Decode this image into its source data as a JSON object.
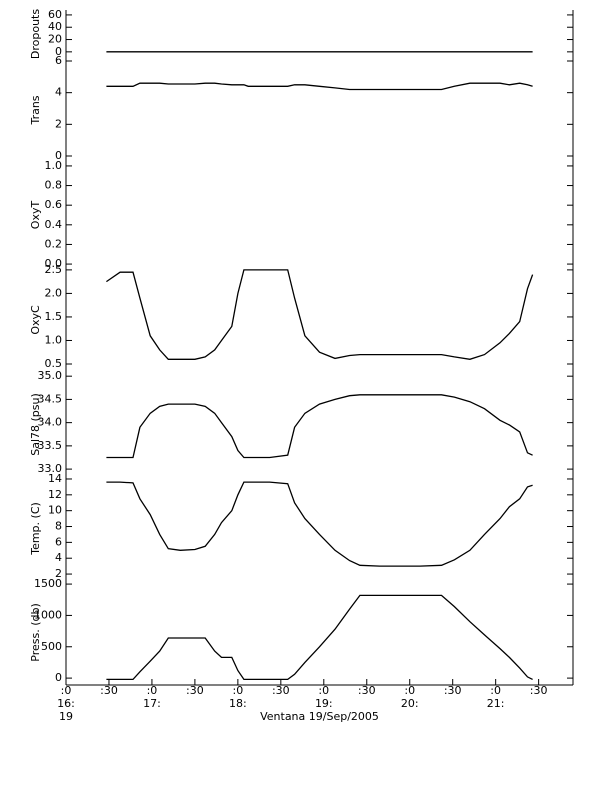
{
  "chart_data": [
    {
      "type": "line",
      "ylabel": "Dropouts",
      "color": "#000000",
      "xlim": [
        16,
        21.9
      ],
      "ylim": [
        -10,
        68
      ],
      "yticks": [
        0,
        20,
        40,
        60
      ],
      "x": [
        16.47,
        16.63,
        16.78,
        16.86,
        16.98,
        17.09,
        17.19,
        17.33,
        17.5,
        17.62,
        17.73,
        17.81,
        17.93,
        18.0,
        18.07,
        18.12,
        18.37,
        18.58,
        18.66,
        18.78,
        18.95,
        19.13,
        19.3,
        19.42,
        19.65,
        19.88,
        20.12,
        20.37,
        20.52,
        20.7,
        20.87,
        21.05,
        21.16,
        21.28,
        21.37,
        21.43
      ],
      "values": [
        0,
        0,
        0,
        0,
        0,
        0,
        0,
        0,
        0,
        0,
        0,
        0,
        0,
        0,
        0,
        0,
        0,
        0,
        0,
        0,
        0,
        0,
        0,
        0,
        0,
        0,
        0,
        0,
        0,
        0,
        0,
        0,
        0,
        0,
        0,
        0
      ]
    },
    {
      "type": "line",
      "ylabel": "Trans",
      "color": "#000000",
      "xlim": [
        16,
        21.9
      ],
      "ylim": [
        -0.38,
        6.19
      ],
      "yticks": [
        0,
        2,
        4,
        6
      ],
      "x": [
        16.47,
        16.63,
        16.78,
        16.86,
        16.98,
        17.09,
        17.19,
        17.33,
        17.5,
        17.62,
        17.73,
        17.81,
        17.93,
        18.0,
        18.07,
        18.12,
        18.37,
        18.58,
        18.66,
        18.78,
        18.95,
        19.13,
        19.3,
        19.42,
        19.65,
        19.88,
        20.12,
        20.37,
        20.52,
        20.7,
        20.87,
        21.05,
        21.16,
        21.28,
        21.37,
        21.43
      ],
      "values": [
        4.4,
        4.4,
        4.4,
        4.6,
        4.6,
        4.6,
        4.55,
        4.55,
        4.55,
        4.6,
        4.6,
        4.55,
        4.5,
        4.5,
        4.5,
        4.4,
        4.4,
        4.4,
        4.5,
        4.5,
        4.4,
        4.3,
        4.2,
        4.2,
        4.2,
        4.2,
        4.2,
        4.2,
        4.4,
        4.6,
        4.6,
        4.6,
        4.5,
        4.6,
        4.5,
        4.4
      ]
    },
    {
      "type": "line",
      "ylabel": "OxyT",
      "color": "#000000",
      "xlim": [
        16,
        21.9
      ],
      "ylim": [
        -0.04,
        1.04
      ],
      "yticks": [
        {
          "value": 0,
          "label": "0.0"
        },
        0.2,
        0.4,
        0.6,
        0.8,
        {
          "value": 1,
          "label": "1.0"
        }
      ]
    },
    {
      "type": "line",
      "ylabel": "OxyC",
      "color": "#000000",
      "xlim": [
        16,
        21.9
      ],
      "ylim": [
        0.33,
        2.54
      ],
      "yticks": [
        0.5,
        {
          "value": 1,
          "label": "1.0"
        },
        1.5,
        {
          "value": 2,
          "label": "2.0"
        },
        2.5
      ],
      "x": [
        16.47,
        16.63,
        16.78,
        16.86,
        16.98,
        17.09,
        17.19,
        17.33,
        17.5,
        17.62,
        17.73,
        17.81,
        17.93,
        18.0,
        18.07,
        18.12,
        18.37,
        18.58,
        18.66,
        18.78,
        18.95,
        19.13,
        19.3,
        19.42,
        19.65,
        19.88,
        20.12,
        20.37,
        20.52,
        20.7,
        20.87,
        21.05,
        21.16,
        21.28,
        21.37,
        21.43
      ],
      "values": [
        2.25,
        2.45,
        2.45,
        1.9,
        1.1,
        0.8,
        0.6,
        0.6,
        0.6,
        0.65,
        0.8,
        1.0,
        1.3,
        2.0,
        2.5,
        2.5,
        2.5,
        2.5,
        1.9,
        1.1,
        0.75,
        0.62,
        0.68,
        0.7,
        0.7,
        0.7,
        0.7,
        0.7,
        0.65,
        0.6,
        0.7,
        0.95,
        1.15,
        1.4,
        2.1,
        2.4
      ]
    },
    {
      "type": "line",
      "ylabel": "Sal78 (psu)",
      "color": "#000000",
      "xlim": [
        16,
        21.9
      ],
      "ylim": [
        32.83,
        35.09
      ],
      "yticks": [
        {
          "value": 33,
          "label": "33.0"
        },
        33.5,
        {
          "value": 34,
          "label": "34.0"
        },
        34.5,
        {
          "value": 35,
          "label": "35.0"
        }
      ],
      "x": [
        16.47,
        16.63,
        16.78,
        16.86,
        16.98,
        17.09,
        17.19,
        17.33,
        17.5,
        17.62,
        17.73,
        17.81,
        17.93,
        18.0,
        18.07,
        18.12,
        18.37,
        18.58,
        18.66,
        18.78,
        18.95,
        19.13,
        19.3,
        19.42,
        19.65,
        19.88,
        20.12,
        20.37,
        20.52,
        20.7,
        20.87,
        21.05,
        21.16,
        21.28,
        21.37,
        21.43
      ],
      "values": [
        33.25,
        33.25,
        33.25,
        33.9,
        34.2,
        34.35,
        34.4,
        34.4,
        34.4,
        34.35,
        34.2,
        34.0,
        33.7,
        33.4,
        33.25,
        33.25,
        33.25,
        33.3,
        33.9,
        34.2,
        34.4,
        34.5,
        34.58,
        34.6,
        34.6,
        34.6,
        34.6,
        34.6,
        34.55,
        34.45,
        34.3,
        34.05,
        33.95,
        33.8,
        33.35,
        33.3
      ]
    },
    {
      "type": "line",
      "ylabel": "Temp. (C)",
      "color": "#000000",
      "xlim": [
        16,
        21.9
      ],
      "ylim": [
        1.25,
        14.25
      ],
      "yticks": [
        2,
        4,
        6,
        8,
        10,
        12,
        14
      ],
      "x": [
        16.47,
        16.63,
        16.78,
        16.86,
        16.98,
        17.09,
        17.19,
        17.33,
        17.5,
        17.62,
        17.73,
        17.81,
        17.93,
        18.0,
        18.07,
        18.12,
        18.37,
        18.58,
        18.66,
        18.78,
        18.95,
        19.13,
        19.3,
        19.42,
        19.65,
        19.88,
        20.12,
        20.37,
        20.52,
        20.7,
        20.87,
        21.05,
        21.16,
        21.28,
        21.37,
        21.43
      ],
      "values": [
        13.6,
        13.6,
        13.5,
        11.5,
        9.5,
        7,
        5.2,
        5,
        5.1,
        5.5,
        7,
        8.5,
        10,
        12,
        13.6,
        13.6,
        13.6,
        13.4,
        11,
        9,
        7,
        5,
        3.7,
        3.1,
        3,
        3,
        3,
        3.1,
        3.8,
        5,
        7,
        9,
        10.5,
        11.5,
        13,
        13.2
      ]
    },
    {
      "type": "line",
      "ylabel": "Press. (db)",
      "color": "#000000",
      "xlim": [
        16,
        21.9
      ],
      "ylim": [
        -110,
        1565
      ],
      "yticks": [
        0,
        500,
        1000,
        1500
      ],
      "x": [
        16.47,
        16.63,
        16.78,
        16.86,
        16.98,
        17.09,
        17.19,
        17.33,
        17.5,
        17.62,
        17.73,
        17.81,
        17.93,
        18.0,
        18.07,
        18.12,
        18.37,
        18.58,
        18.66,
        18.78,
        18.95,
        19.13,
        19.3,
        19.42,
        19.65,
        19.88,
        20.12,
        20.37,
        20.52,
        20.7,
        20.87,
        21.05,
        21.16,
        21.28,
        21.37,
        21.43
      ],
      "values": [
        -20,
        -20,
        -20,
        100,
        270,
        430,
        640,
        640,
        640,
        640,
        430,
        330,
        330,
        120,
        -20,
        -20,
        -20,
        -20,
        60,
        250,
        500,
        780,
        1100,
        1320,
        1320,
        1320,
        1320,
        1320,
        1140,
        900,
        690,
        470,
        330,
        160,
        20,
        -20
      ],
      "xticks": [
        {
          "value": 16,
          "label": ":0"
        },
        {
          "value": 16.5,
          "label": ":30"
        },
        {
          "value": 17,
          "label": ":0"
        },
        {
          "value": 17.5,
          "label": ":30"
        },
        {
          "value": 18,
          "label": ":0"
        },
        {
          "value": 18.5,
          "label": ":30"
        },
        {
          "value": 19,
          "label": ":0"
        },
        {
          "value": 19.5,
          "label": ":30"
        },
        {
          "value": 20,
          "label": ":0"
        },
        {
          "value": 20.5,
          "label": ":30"
        },
        {
          "value": 21,
          "label": ":0"
        },
        {
          "value": 21.5,
          "label": ":30"
        }
      ],
      "xtick_hours": [
        {
          "value": 16,
          "label": "16:"
        },
        {
          "value": 17,
          "label": "17:"
        },
        {
          "value": 18,
          "label": "18:"
        },
        {
          "value": 19,
          "label": "19:"
        },
        {
          "value": 20,
          "label": "20:"
        },
        {
          "value": 21,
          "label": "21:"
        }
      ],
      "day": {
        "value": 16,
        "label": "19"
      },
      "xlabel": "Ventana 19/Sep/2005"
    }
  ]
}
